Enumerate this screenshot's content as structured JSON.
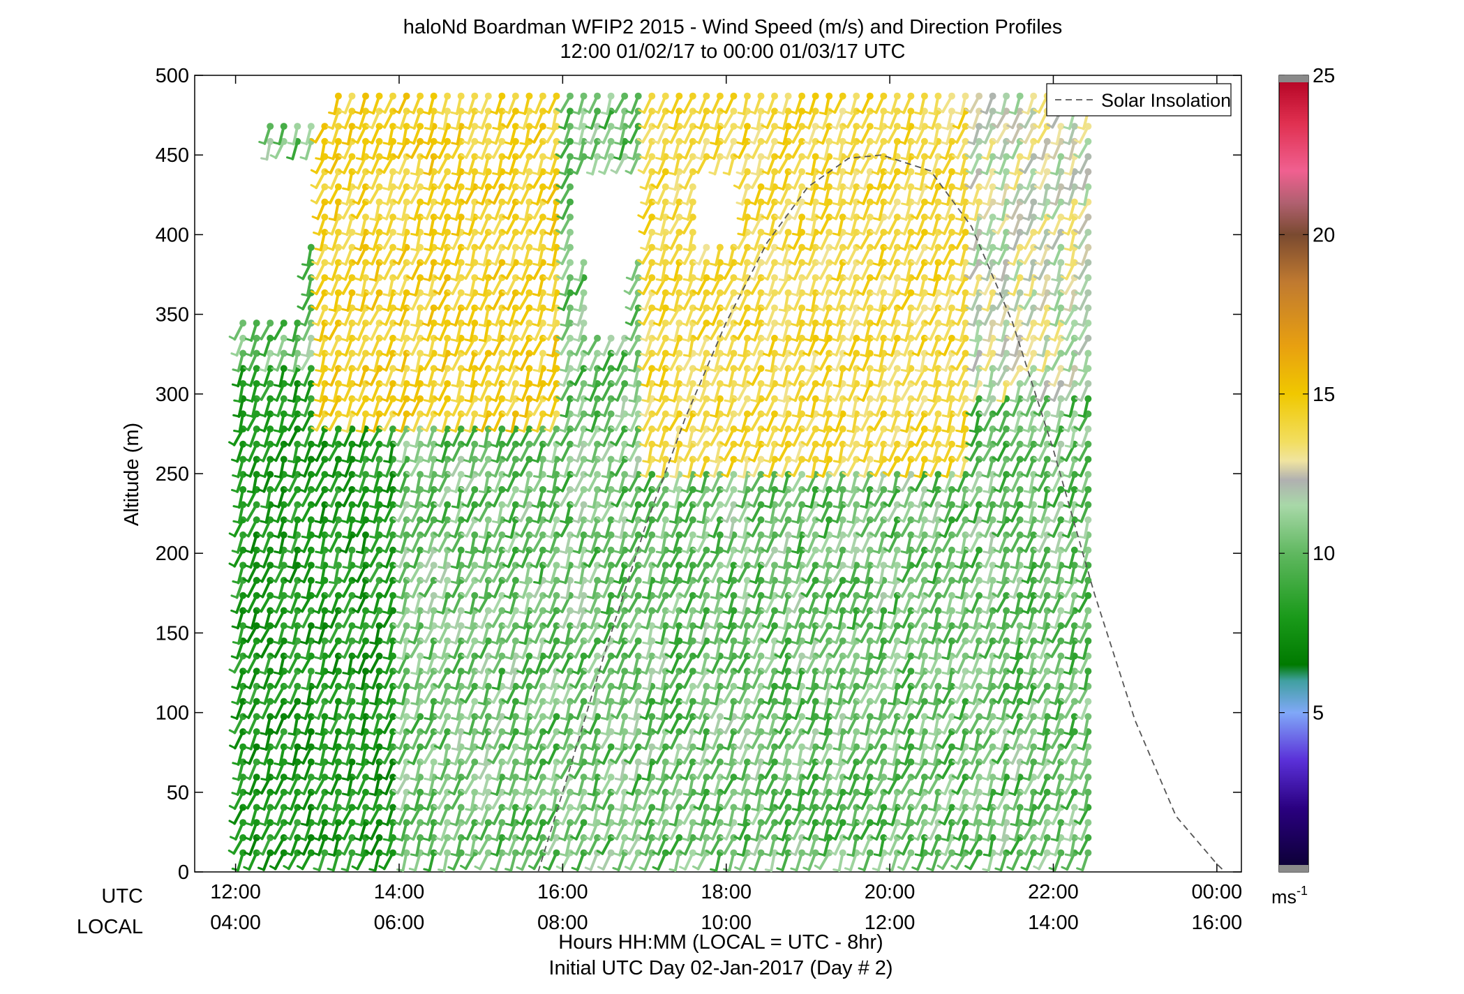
{
  "chart_data": {
    "type": "wind_barb_profile",
    "title_line1": "haloNd Boardman WFIP2 2015 - Wind Speed (m/s) and Direction Profiles",
    "title_line2": "12:00 01/02/17 to 00:00 01/03/17  UTC",
    "ylabel": "Altitude (m)",
    "xlabel_line1": "Hours HH:MM  (LOCAL = UTC - 8hr)",
    "xlabel_line2": "Initial UTC Day 02-Jan-2017 (Day # 2)",
    "row_label_utc": "UTC",
    "row_label_local": "LOCAL",
    "xlim_hours": [
      11.5,
      24.3
    ],
    "ylim": [
      0,
      500
    ],
    "y_ticks": [
      0,
      50,
      100,
      150,
      200,
      250,
      300,
      350,
      400,
      450,
      500
    ],
    "y_tick_labels": [
      "0",
      "50",
      "100",
      "150",
      "200",
      "250",
      "300",
      "350",
      "400",
      "450",
      "500"
    ],
    "x_ticks_hours": [
      12,
      14,
      16,
      18,
      20,
      22,
      24
    ],
    "x_tick_labels_utc": [
      "12:00",
      "14:00",
      "16:00",
      "18:00",
      "20:00",
      "22:00",
      "00:00"
    ],
    "x_tick_labels_local": [
      "04:00",
      "06:00",
      "08:00",
      "10:00",
      "12:00",
      "14:00",
      "16:00"
    ],
    "legend": {
      "entry": "Solar Insolation",
      "style": "dashed gray",
      "placement": "top-right"
    },
    "colorbar": {
      "range": [
        0,
        25
      ],
      "ticks": [
        5,
        10,
        15,
        20,
        25
      ],
      "tick_labels": [
        "5",
        "10",
        "15",
        "20",
        "25"
      ],
      "unit_label": "ms",
      "unit_exp": "-1",
      "stops": [
        {
          "v": 0.0,
          "c": "#0a0030"
        },
        {
          "v": 2.0,
          "c": "#2a0080"
        },
        {
          "v": 3.5,
          "c": "#5a30d8"
        },
        {
          "v": 5.0,
          "c": "#80a8f8"
        },
        {
          "v": 6.0,
          "c": "#40a0a0"
        },
        {
          "v": 6.5,
          "c": "#007a00"
        },
        {
          "v": 8.0,
          "c": "#1a9a1a"
        },
        {
          "v": 10.0,
          "c": "#60b860"
        },
        {
          "v": 11.5,
          "c": "#a8d8a8"
        },
        {
          "v": 12.3,
          "c": "#b0b0b0"
        },
        {
          "v": 12.9,
          "c": "#f0e4a0"
        },
        {
          "v": 13.5,
          "c": "#f2de60"
        },
        {
          "v": 15.0,
          "c": "#f0c800"
        },
        {
          "v": 16.5,
          "c": "#e8a010"
        },
        {
          "v": 18.5,
          "c": "#c07a30"
        },
        {
          "v": 20.0,
          "c": "#7a4a30"
        },
        {
          "v": 21.0,
          "c": "#b06070"
        },
        {
          "v": 22.0,
          "c": "#f06090"
        },
        {
          "v": 23.5,
          "c": "#e03050"
        },
        {
          "v": 25.0,
          "c": "#b00020"
        }
      ]
    },
    "insolation_curve": {
      "description_points": "normalized solar insolation vs UTC hour",
      "x_hours": [
        15.7,
        16.0,
        16.5,
        17.0,
        17.5,
        18.0,
        18.5,
        19.0,
        19.5,
        19.9,
        20.5,
        21.0,
        21.5,
        22.0,
        22.5,
        23.0,
        23.5,
        24.0,
        24.1
      ],
      "y_altitude_equiv": [
        0,
        50,
        135,
        215,
        285,
        345,
        395,
        430,
        448,
        450,
        440,
        405,
        345,
        265,
        175,
        95,
        35,
        5,
        0
      ]
    },
    "barbs": {
      "time_start_hours": 12.09,
      "time_step_hours": 0.1667,
      "n_times": 63,
      "altitude_start": 12,
      "altitude_step": 9.5,
      "n_levels": 51,
      "direction_from_deg": 200,
      "speed_regimes": [
        {
          "name": "lower_layer_morning",
          "t_range": [
            12,
            14
          ],
          "alt_range": [
            0,
            320
          ],
          "speed_range": [
            6.8,
            9.0
          ]
        },
        {
          "name": "lower_layer_afternoon",
          "t_range": [
            14,
            24
          ],
          "alt_range": [
            0,
            250
          ],
          "speed_range": [
            8.5,
            11.8
          ]
        },
        {
          "name": "jet_upper_morning",
          "t_range": [
            13,
            16
          ],
          "alt_range": [
            280,
            500
          ],
          "speed_range": [
            13.5,
            15.5
          ]
        },
        {
          "name": "jet_midday",
          "t_range": [
            17,
            21
          ],
          "alt_range": [
            250,
            500
          ],
          "speed_range": [
            13.0,
            15.0
          ]
        },
        {
          "name": "upper_afternoon",
          "t_range": [
            21,
            24
          ],
          "alt_range": [
            300,
            500
          ],
          "speed_range": [
            11.0,
            13.5
          ]
        }
      ]
    }
  }
}
